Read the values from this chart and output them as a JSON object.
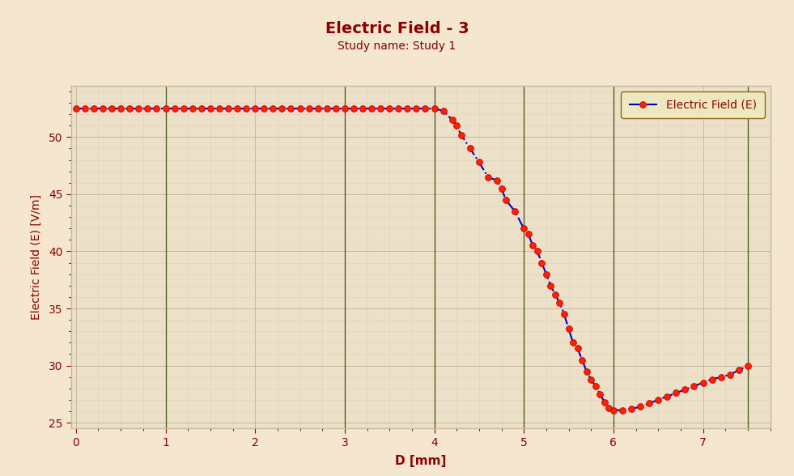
{
  "title": "Electric Field - 3",
  "subtitle": "Study name: Study 1",
  "xlabel": "D [mm]",
  "ylabel": "Electric Field (E) [V/m]",
  "title_color": "#8B0000",
  "subtitle_color": "#800000",
  "axis_label_color": "#8B0000",
  "tick_color": "#8B0000",
  "background_color": "#F5E6D0",
  "plot_bg_color": "#EDE0C8",
  "grid_major_color": "#C8B89A",
  "grid_minor_color": "#DDD0BC",
  "vline_color": "#4B6020",
  "line_color": "#0000CC",
  "marker_face_color": "#FF2200",
  "marker_edge_color": "#CC0000",
  "legend_bg": "#EDE8C0",
  "legend_edge": "#8B6914",
  "outer_border_color": "#B0B0B8",
  "xlim": [
    -0.05,
    7.75
  ],
  "ylim": [
    24.5,
    54.5
  ],
  "xticks": [
    0,
    1,
    2,
    3,
    4,
    5,
    6,
    7
  ],
  "yticks": [
    25,
    30,
    35,
    40,
    45,
    50
  ],
  "vlines": [
    1.0,
    3.0,
    4.0,
    5.0,
    6.0,
    7.5
  ],
  "x": [
    0.0,
    0.1,
    0.2,
    0.3,
    0.4,
    0.5,
    0.6,
    0.7,
    0.8,
    0.9,
    1.0,
    1.1,
    1.2,
    1.3,
    1.4,
    1.5,
    1.6,
    1.7,
    1.8,
    1.9,
    2.0,
    2.1,
    2.2,
    2.3,
    2.4,
    2.5,
    2.6,
    2.7,
    2.8,
    2.9,
    3.0,
    3.1,
    3.2,
    3.3,
    3.4,
    3.5,
    3.6,
    3.7,
    3.8,
    3.9,
    4.0,
    4.1,
    4.2,
    4.25,
    4.3,
    4.4,
    4.5,
    4.6,
    4.7,
    4.75,
    4.8,
    4.9,
    5.0,
    5.05,
    5.1,
    5.15,
    5.2,
    5.25,
    5.3,
    5.35,
    5.4,
    5.45,
    5.5,
    5.55,
    5.6,
    5.65,
    5.7,
    5.75,
    5.8,
    5.85,
    5.9,
    5.95,
    6.0,
    6.1,
    6.2,
    6.3,
    6.4,
    6.5,
    6.6,
    6.7,
    6.8,
    6.9,
    7.0,
    7.1,
    7.2,
    7.3,
    7.4,
    7.5
  ],
  "y": [
    52.5,
    52.5,
    52.5,
    52.5,
    52.5,
    52.5,
    52.5,
    52.5,
    52.5,
    52.5,
    52.5,
    52.5,
    52.5,
    52.5,
    52.5,
    52.5,
    52.5,
    52.5,
    52.5,
    52.5,
    52.5,
    52.5,
    52.5,
    52.5,
    52.5,
    52.5,
    52.5,
    52.5,
    52.5,
    52.5,
    52.5,
    52.5,
    52.5,
    52.5,
    52.5,
    52.5,
    52.5,
    52.5,
    52.5,
    52.5,
    52.5,
    52.3,
    51.5,
    51.0,
    50.2,
    49.0,
    47.8,
    46.5,
    46.2,
    45.5,
    44.5,
    43.5,
    42.0,
    41.5,
    40.5,
    40.0,
    39.0,
    38.0,
    37.0,
    36.2,
    35.5,
    34.5,
    33.2,
    32.0,
    31.5,
    30.5,
    29.5,
    28.8,
    28.2,
    27.5,
    26.8,
    26.3,
    26.1,
    26.1,
    26.2,
    26.4,
    26.7,
    27.0,
    27.3,
    27.6,
    27.9,
    28.2,
    28.5,
    28.8,
    29.0,
    29.2,
    29.6,
    30.0
  ]
}
